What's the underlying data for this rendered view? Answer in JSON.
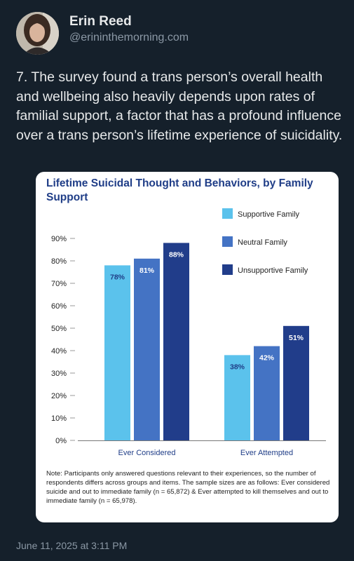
{
  "author": {
    "name": "Erin Reed",
    "handle": "@erininthemorning.com"
  },
  "tweet": {
    "text": "7. The survey found a trans person’s overall health and wellbeing also heavily depends upon rates of familial support, a factor that has a profound influence over a trans person’s lifetime experience of suicidality."
  },
  "chart": {
    "title": "Lifetime Suicidal Thought and Behaviors, by Family Support",
    "note": "Note: Participants only answered questions relevant to their experiences, so the number of respondents differs across groups and items. The sample sizes are as follows: Ever considered suicide and out to immediate family (n = 65,872) & Ever attempted to kill themselves and out to immediate family (n = 65,978)."
  },
  "chart_data": {
    "type": "bar",
    "title": "Lifetime Suicidal Thought and Behaviors, by Family Support",
    "categories": [
      "Ever Considered",
      "Ever Attempted"
    ],
    "series": [
      {
        "name": "Supportive Family",
        "values": [
          78,
          38
        ],
        "labels": [
          "78%",
          "38%"
        ],
        "color": "#5bc2ec"
      },
      {
        "name": "Neutral Family",
        "values": [
          81,
          42
        ],
        "labels": [
          "81%",
          "42%"
        ],
        "color": "#4473c4"
      },
      {
        "name": "Unsupportive Family",
        "values": [
          88,
          51
        ],
        "labels": [
          "88%",
          "51%"
        ],
        "color": "#213d8a"
      }
    ],
    "y_ticks": [
      "0%",
      "10%",
      "20%",
      "30%",
      "40%",
      "50%",
      "60%",
      "70%",
      "80%",
      "90%"
    ],
    "ylim": [
      0,
      90
    ],
    "legend_position": "top-right",
    "grid": false
  },
  "timestamp": "June 11, 2025 at 3:11 PM"
}
